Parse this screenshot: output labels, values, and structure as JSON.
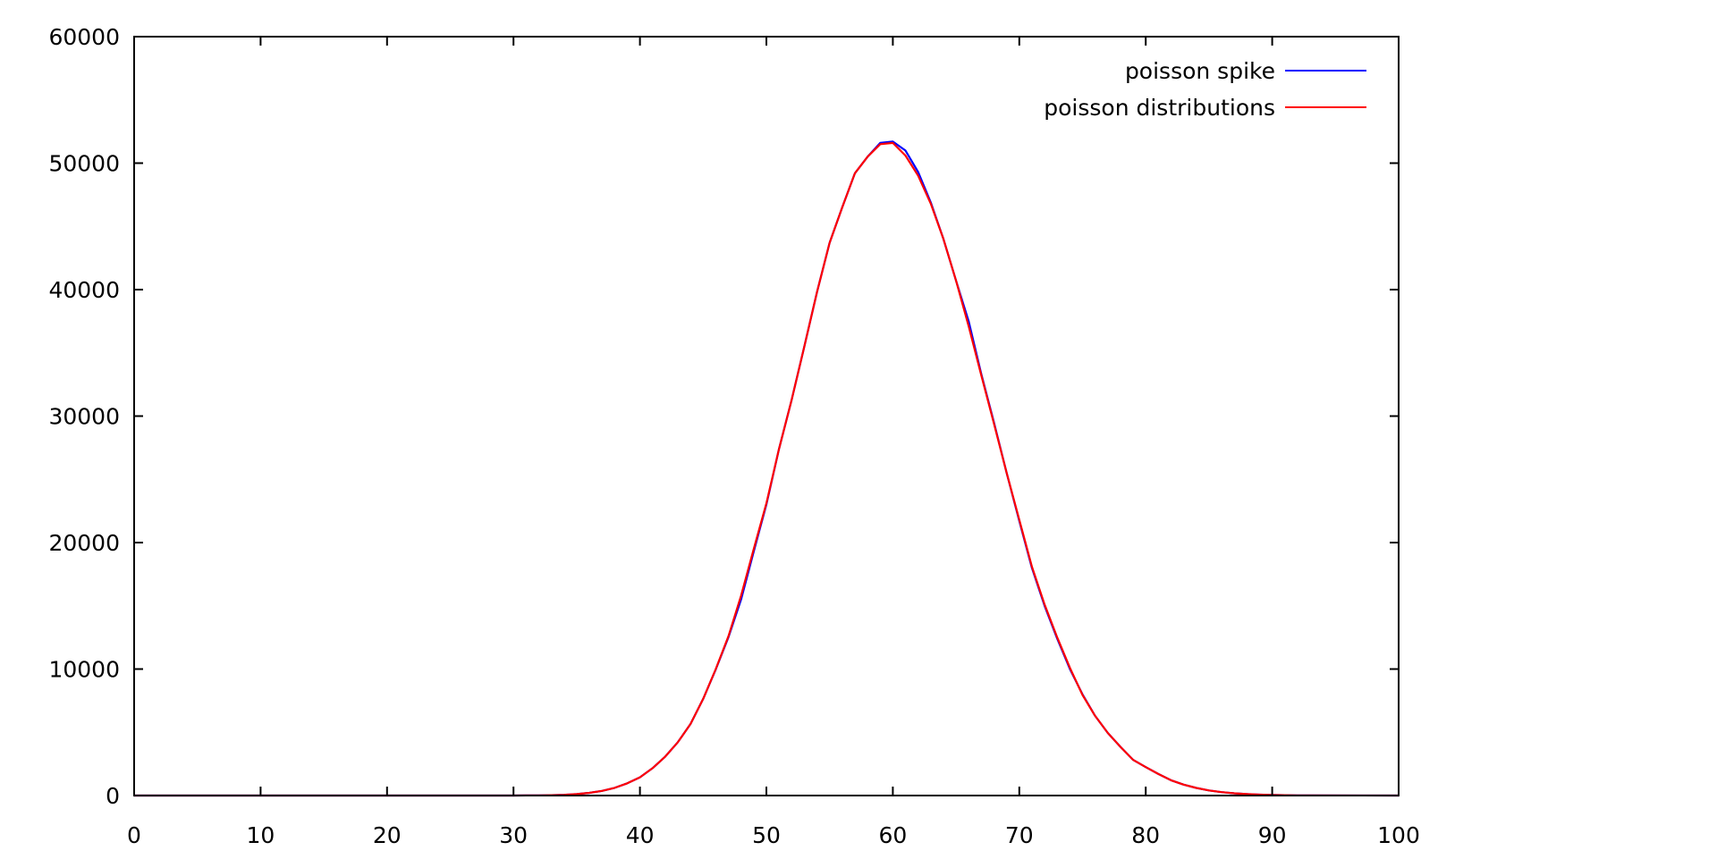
{
  "chart_data": {
    "type": "line",
    "title": "",
    "xlabel": "",
    "ylabel": "",
    "xlim": [
      0,
      100
    ],
    "ylim": [
      0,
      60000
    ],
    "grid": false,
    "legend_position": "top-right",
    "x_ticks": [
      "0",
      "10",
      "20",
      "30",
      "40",
      "50",
      "60",
      "70",
      "80",
      "90",
      "100"
    ],
    "y_ticks": [
      "0",
      "10000",
      "20000",
      "30000",
      "40000",
      "50000",
      "60000"
    ],
    "series": [
      {
        "name": "poisson spike",
        "color": "#0000ff",
        "points": [
          [
            0,
            0
          ],
          [
            10,
            0
          ],
          [
            20,
            0
          ],
          [
            30,
            0
          ],
          [
            31,
            5
          ],
          [
            32,
            12
          ],
          [
            33,
            30
          ],
          [
            34,
            60
          ],
          [
            35,
            115
          ],
          [
            36,
            210
          ],
          [
            37,
            370
          ],
          [
            38,
            610
          ],
          [
            39,
            970
          ],
          [
            40,
            1440
          ],
          [
            41,
            2160
          ],
          [
            42,
            3080
          ],
          [
            43,
            4220
          ],
          [
            44,
            5660
          ],
          [
            45,
            7640
          ],
          [
            46,
            9970
          ],
          [
            47,
            12520
          ],
          [
            48,
            15500
          ],
          [
            49,
            19300
          ],
          [
            50,
            23000
          ],
          [
            51,
            27400
          ],
          [
            52,
            31300
          ],
          [
            53,
            35500
          ],
          [
            54,
            39800
          ],
          [
            55,
            43700
          ],
          [
            56,
            46500
          ],
          [
            57,
            49200
          ],
          [
            58,
            50500
          ],
          [
            59,
            51600
          ],
          [
            60,
            51700
          ],
          [
            61,
            51000
          ],
          [
            62,
            49300
          ],
          [
            63,
            46900
          ],
          [
            64,
            44000
          ],
          [
            65,
            40700
          ],
          [
            66,
            37500
          ],
          [
            67,
            33300
          ],
          [
            68,
            29500
          ],
          [
            69,
            25500
          ],
          [
            70,
            21700
          ],
          [
            71,
            18000
          ],
          [
            72,
            15000
          ],
          [
            73,
            12400
          ],
          [
            74,
            10000
          ],
          [
            75,
            8000
          ],
          [
            76,
            6300
          ],
          [
            77,
            4950
          ],
          [
            78,
            3850
          ],
          [
            79,
            2820
          ],
          [
            80,
            2250
          ],
          [
            81,
            1700
          ],
          [
            82,
            1210
          ],
          [
            83,
            860
          ],
          [
            84,
            600
          ],
          [
            85,
            400
          ],
          [
            86,
            270
          ],
          [
            87,
            180
          ],
          [
            88,
            115
          ],
          [
            89,
            70
          ],
          [
            90,
            40
          ],
          [
            91,
            25
          ],
          [
            92,
            12
          ],
          [
            93,
            5
          ],
          [
            100,
            0
          ]
        ]
      },
      {
        "name": "poisson distributions",
        "color": "#ff0000",
        "points": [
          [
            0,
            0
          ],
          [
            10,
            0
          ],
          [
            20,
            0
          ],
          [
            30,
            0
          ],
          [
            31,
            5
          ],
          [
            32,
            12
          ],
          [
            33,
            30
          ],
          [
            34,
            60
          ],
          [
            35,
            115
          ],
          [
            36,
            210
          ],
          [
            37,
            370
          ],
          [
            38,
            610
          ],
          [
            39,
            970
          ],
          [
            40,
            1440
          ],
          [
            41,
            2160
          ],
          [
            42,
            3080
          ],
          [
            43,
            4220
          ],
          [
            44,
            5660
          ],
          [
            45,
            7640
          ],
          [
            46,
            10000
          ],
          [
            47,
            12600
          ],
          [
            48,
            15800
          ],
          [
            49,
            19500
          ],
          [
            50,
            23100
          ],
          [
            51,
            27400
          ],
          [
            52,
            31300
          ],
          [
            53,
            35500
          ],
          [
            54,
            39800
          ],
          [
            55,
            43700
          ],
          [
            56,
            46500
          ],
          [
            57,
            49200
          ],
          [
            58,
            50500
          ],
          [
            59,
            51500
          ],
          [
            60,
            51600
          ],
          [
            61,
            50600
          ],
          [
            62,
            49000
          ],
          [
            63,
            46800
          ],
          [
            64,
            44000
          ],
          [
            65,
            40700
          ],
          [
            66,
            37100
          ],
          [
            67,
            33200
          ],
          [
            68,
            29400
          ],
          [
            69,
            25500
          ],
          [
            70,
            21800
          ],
          [
            71,
            18100
          ],
          [
            72,
            15100
          ],
          [
            73,
            12500
          ],
          [
            74,
            10100
          ],
          [
            75,
            7950
          ],
          [
            76,
            6300
          ],
          [
            77,
            4950
          ],
          [
            78,
            3850
          ],
          [
            79,
            2820
          ],
          [
            80,
            2250
          ],
          [
            81,
            1700
          ],
          [
            82,
            1210
          ],
          [
            83,
            860
          ],
          [
            84,
            600
          ],
          [
            85,
            400
          ],
          [
            86,
            270
          ],
          [
            87,
            180
          ],
          [
            88,
            115
          ],
          [
            89,
            70
          ],
          [
            90,
            40
          ],
          [
            91,
            25
          ],
          [
            92,
            12
          ],
          [
            93,
            5
          ],
          [
            100,
            0
          ]
        ]
      }
    ]
  }
}
